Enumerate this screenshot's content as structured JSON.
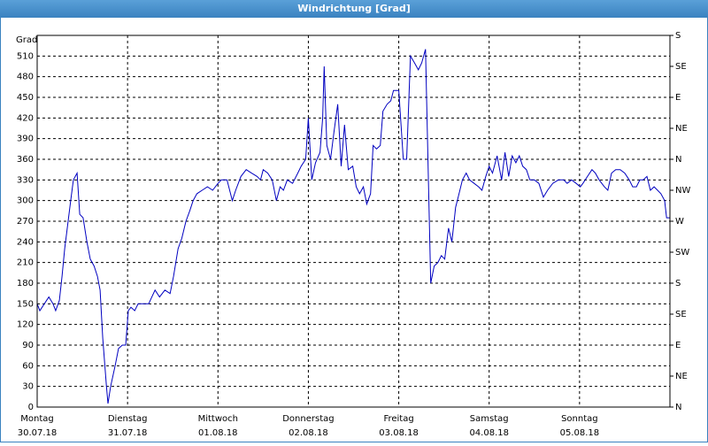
{
  "header": {
    "title": "Windrichtung [Grad]"
  },
  "chart_data": {
    "type": "line",
    "y_label": "Grad",
    "x": [
      0,
      0.7,
      1.9,
      3.1,
      4.2,
      4.9,
      5.9,
      6.6,
      7.3,
      8,
      8.9,
      9.6,
      10.6,
      11.3,
      12.2,
      13.2,
      14.1,
      15.1,
      16,
      16.7,
      17.4,
      18.4,
      18.8,
      19.5,
      20.7,
      21.6,
      22.6,
      23.5,
      24.2,
      24.9,
      25.9,
      26.8,
      28.2,
      29.6,
      31.3,
      32.5,
      33.9,
      35.3,
      36.2,
      37.4,
      38.4,
      39.5,
      40.5,
      41.4,
      42.4,
      43.8,
      45.2,
      46.6,
      48,
      48.9,
      50.4,
      51.8,
      52.7,
      54.1,
      55.5,
      56.9,
      58.4,
      59.3,
      60,
      61.2,
      62.4,
      63.5,
      64.5,
      65.4,
      66.4,
      67.8,
      69.2,
      70.1,
      71.3,
      72,
      72.9,
      73.9,
      75.1,
      75.8,
      76.2,
      76.9,
      77.9,
      78.8,
      79.8,
      80.7,
      81.6,
      82.6,
      83.8,
      84.7,
      85.6,
      86.6,
      87.5,
      88.5,
      89.2,
      90.1,
      91.1,
      91.8,
      92.9,
      93.9,
      94.6,
      96,
      97.2,
      98.1,
      99.1,
      100.2,
      101.2,
      102.1,
      103.1,
      104,
      104.5,
      105.4,
      106.4,
      107.3,
      108.2,
      109.2,
      110.1,
      111.1,
      112,
      112.9,
      113.9,
      114.8,
      116,
      117.2,
      118.1,
      119.1,
      120,
      120.9,
      122.1,
      123.3,
      124.2,
      125.2,
      126.1,
      127.1,
      128,
      128.9,
      129.9,
      130.8,
      132,
      133.2,
      134.4,
      135.5,
      136.9,
      138.4,
      139.8,
      140.7,
      141.9,
      143.1,
      144.2,
      144.9,
      146.1,
      147.3,
      148.2,
      149.2,
      150.6,
      151.5,
      152.5,
      153.6,
      154.8,
      156,
      157.2,
      158.1,
      159.1,
      160,
      160.9,
      161.9,
      162.8,
      163.8,
      164.7,
      165.6,
      166.6,
      167.1,
      168
    ],
    "series": [
      {
        "name": "Windrichtung",
        "color": "#0000c0",
        "values": [
          150,
          140,
          150,
          160,
          150,
          140,
          155,
          190,
          230,
          260,
          300,
          330,
          340,
          280,
          275,
          240,
          215,
          205,
          190,
          170,
          100,
          30,
          5,
          30,
          60,
          85,
          90,
          90,
          140,
          145,
          140,
          150,
          150,
          150,
          170,
          160,
          170,
          165,
          190,
          230,
          245,
          270,
          285,
          300,
          310,
          315,
          320,
          315,
          325,
          330,
          330,
          300,
          315,
          335,
          345,
          340,
          335,
          330,
          345,
          340,
          330,
          300,
          320,
          315,
          330,
          325,
          340,
          350,
          360,
          420,
          330,
          355,
          370,
          420,
          495,
          380,
          360,
          400,
          440,
          350,
          410,
          345,
          350,
          320,
          310,
          320,
          295,
          310,
          380,
          375,
          380,
          430,
          440,
          445,
          460,
          460,
          360,
          360,
          510,
          500,
          490,
          500,
          520,
          300,
          180,
          205,
          210,
          220,
          215,
          260,
          240,
          290,
          310,
          330,
          340,
          330,
          325,
          320,
          315,
          335,
          350,
          340,
          365,
          330,
          370,
          335,
          365,
          355,
          365,
          350,
          345,
          330,
          330,
          325,
          305,
          315,
          325,
          330,
          330,
          325,
          330,
          325,
          320,
          325,
          335,
          345,
          340,
          330,
          320,
          315,
          340,
          345,
          345,
          340,
          330,
          320,
          320,
          330,
          330,
          335,
          315,
          320,
          315,
          310,
          300,
          275,
          275
        ]
      }
    ],
    "xlim": [
      0,
      168
    ],
    "xticks": [
      {
        "value": 0,
        "label": "Montag"
      },
      {
        "value": 24,
        "label": "Dienstag"
      },
      {
        "value": 48,
        "label": "Mittwoch"
      },
      {
        "value": 72,
        "label": "Donnerstag"
      },
      {
        "value": 96,
        "label": "Freitag"
      },
      {
        "value": 120,
        "label": "Samstag"
      },
      {
        "value": 144,
        "label": "Sonntag"
      }
    ],
    "xtick_dates": [
      "30.07.18",
      "31.07.18",
      "01.08.18",
      "02.08.18",
      "03.08.18",
      "04.08.18",
      "05.08.18"
    ],
    "ylim": [
      0,
      540
    ],
    "yticks": [
      0,
      30,
      60,
      90,
      120,
      150,
      180,
      210,
      240,
      270,
      300,
      330,
      360,
      390,
      420,
      450,
      480,
      510
    ],
    "y2lim": [
      0,
      540
    ],
    "y2ticks": [
      {
        "value": 0,
        "label": "N"
      },
      {
        "value": 45,
        "label": "NE"
      },
      {
        "value": 90,
        "label": "E"
      },
      {
        "value": 135,
        "label": "SE"
      },
      {
        "value": 180,
        "label": "S"
      },
      {
        "value": 225,
        "label": "SW"
      },
      {
        "value": 270,
        "label": "W"
      },
      {
        "value": 315,
        "label": "NW"
      },
      {
        "value": 360,
        "label": "N"
      },
      {
        "value": 405,
        "label": "NE"
      },
      {
        "value": 450,
        "label": "E"
      },
      {
        "value": 495,
        "label": "SE"
      },
      {
        "value": 540,
        "label": "S"
      }
    ],
    "grid": true
  }
}
